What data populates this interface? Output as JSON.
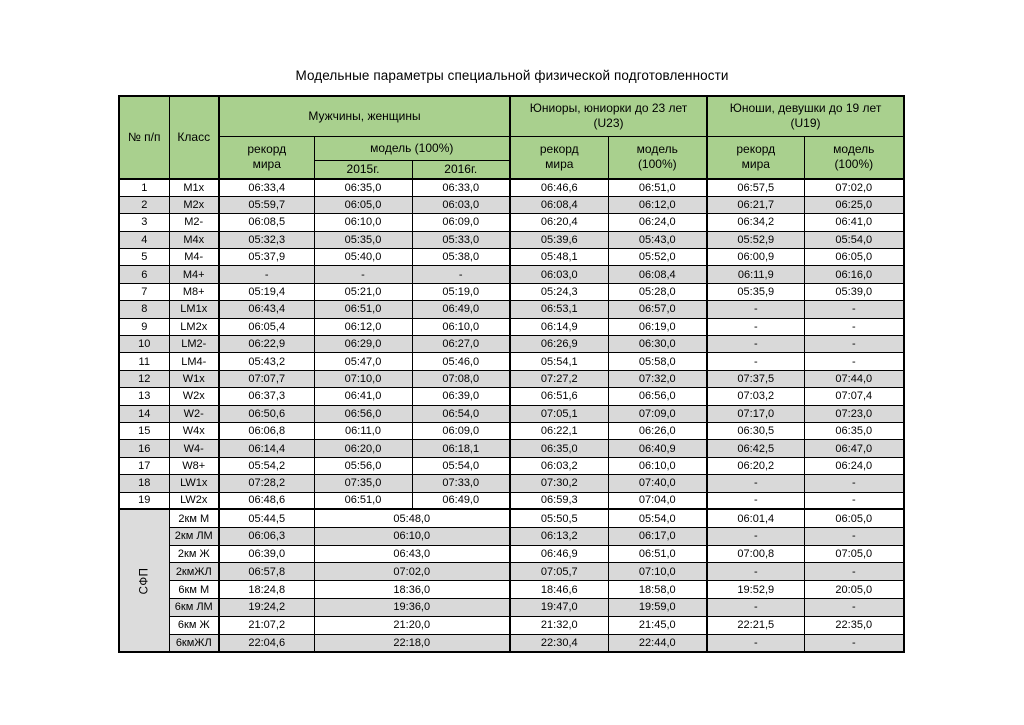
{
  "title": "Модельные параметры специальной физической подготовленности",
  "colors": {
    "header_green": "#a9d08e",
    "stripe_gray": "#d9d9d9",
    "sfp_cell_gray": "#dcdcdc",
    "border": "#000000"
  },
  "header": {
    "num": "№ п/п",
    "klass": "Класс",
    "group_men": "Мужчины, женщины",
    "group_u23": "Юниоры, юниорки до 23 лет\n(U23)",
    "group_u19": "Юноши, девушки до 19 лет\n(U19)",
    "record_world": "рекорд\nмира",
    "model_100": "модель (100%)",
    "model_100_2line": "модель\n(100%)",
    "year_2015": "2015г.",
    "year_2016": "2016г."
  },
  "rows": [
    {
      "num": "1",
      "cls": "M1x",
      "values": [
        "06:33,4",
        "06:35,0",
        "06:33,0",
        "06:46,6",
        "06:51,0",
        "06:57,5",
        "07:02,0"
      ]
    },
    {
      "num": "2",
      "cls": "M2x",
      "values": [
        "05:59,7",
        "06:05,0",
        "06:03,0",
        "06:08,4",
        "06:12,0",
        "06:21,7",
        "06:25,0"
      ]
    },
    {
      "num": "3",
      "cls": "M2-",
      "values": [
        "06:08,5",
        "06:10,0",
        "06:09,0",
        "06:20,4",
        "06:24,0",
        "06:34,2",
        "06:41,0"
      ]
    },
    {
      "num": "4",
      "cls": "M4x",
      "values": [
        "05:32,3",
        "05:35,0",
        "05:33,0",
        "05:39,6",
        "05:43,0",
        "05:52,9",
        "05:54,0"
      ]
    },
    {
      "num": "5",
      "cls": "M4-",
      "values": [
        "05:37,9",
        "05:40,0",
        "05:38,0",
        "05:48,1",
        "05:52,0",
        "06:00,9",
        "06:05,0"
      ]
    },
    {
      "num": "6",
      "cls": "M4+",
      "values": [
        "-",
        "-",
        "-",
        "06:03,0",
        "06:08,4",
        "06:11,9",
        "06:16,0"
      ]
    },
    {
      "num": "7",
      "cls": "M8+",
      "values": [
        "05:19,4",
        "05:21,0",
        "05:19,0",
        "05:24,3",
        "05:28,0",
        "05:35,9",
        "05:39,0"
      ]
    },
    {
      "num": "8",
      "cls": "LM1x",
      "values": [
        "06:43,4",
        "06:51,0",
        "06:49,0",
        "06:53,1",
        "06:57,0",
        "-",
        "-"
      ]
    },
    {
      "num": "9",
      "cls": "LM2x",
      "values": [
        "06:05,4",
        "06:12,0",
        "06:10,0",
        "06:14,9",
        "06:19,0",
        "-",
        "-"
      ]
    },
    {
      "num": "10",
      "cls": "LM2-",
      "values": [
        "06:22,9",
        "06:29,0",
        "06:27,0",
        "06:26,9",
        "06:30,0",
        "-",
        "-"
      ]
    },
    {
      "num": "11",
      "cls": "LM4-",
      "values": [
        "05:43,2",
        "05:47,0",
        "05:46,0",
        "05:54,1",
        "05:58,0",
        "-",
        "-"
      ]
    },
    {
      "num": "12",
      "cls": "W1x",
      "values": [
        "07:07,7",
        "07:10,0",
        "07:08,0",
        "07:27,2",
        "07:32,0",
        "07:37,5",
        "07:44,0"
      ]
    },
    {
      "num": "13",
      "cls": "W2x",
      "values": [
        "06:37,3",
        "06:41,0",
        "06:39,0",
        "06:51,6",
        "06:56,0",
        "07:03,2",
        "07:07,4"
      ]
    },
    {
      "num": "14",
      "cls": "W2-",
      "values": [
        "06:50,6",
        "06:56,0",
        "06:54,0",
        "07:05,1",
        "07:09,0",
        "07:17,0",
        "07:23,0"
      ]
    },
    {
      "num": "15",
      "cls": "W4x",
      "values": [
        "06:06,8",
        "06:11,0",
        "06:09,0",
        "06:22,1",
        "06:26,0",
        "06:30,5",
        "06:35,0"
      ]
    },
    {
      "num": "16",
      "cls": "W4-",
      "values": [
        "06:14,4",
        "06:20,0",
        "06:18,1",
        "06:35,0",
        "06:40,9",
        "06:42,5",
        "06:47,0"
      ]
    },
    {
      "num": "17",
      "cls": "W8+",
      "values": [
        "05:54,2",
        "05:56,0",
        "05:54,0",
        "06:03,2",
        "06:10,0",
        "06:20,2",
        "06:24,0"
      ]
    },
    {
      "num": "18",
      "cls": "LW1x",
      "values": [
        "07:28,2",
        "07:35,0",
        "07:33,0",
        "07:30,2",
        "07:40,0",
        "-",
        "-"
      ]
    },
    {
      "num": "19",
      "cls": "LW2x",
      "values": [
        "06:48,6",
        "06:51,0",
        "06:49,0",
        "06:59,3",
        "07:04,0",
        "-",
        "-"
      ]
    }
  ],
  "sfp": {
    "label": "СФП",
    "rows": [
      {
        "cls": "2км М",
        "values": [
          "05:44,5",
          "05:48,0",
          "05:50,5",
          "05:54,0",
          "06:01,4",
          "06:05,0"
        ]
      },
      {
        "cls": "2км ЛМ",
        "values": [
          "06:06,3",
          "06:10,0",
          "06:13,2",
          "06:17,0",
          "-",
          "-"
        ]
      },
      {
        "cls": "2км Ж",
        "values": [
          "06:39,0",
          "06:43,0",
          "06:46,9",
          "06:51,0",
          "07:00,8",
          "07:05,0"
        ]
      },
      {
        "cls": "2кмЖЛ",
        "values": [
          "06:57,8",
          "07:02,0",
          "07:05,7",
          "07:10,0",
          "-",
          "-"
        ]
      },
      {
        "cls": "6км М",
        "values": [
          "18:24,8",
          "18:36,0",
          "18:46,6",
          "18:58,0",
          "19:52,9",
          "20:05,0"
        ]
      },
      {
        "cls": "6км ЛМ",
        "values": [
          "19:24,2",
          "19:36,0",
          "19:47,0",
          "19:59,0",
          "-",
          "-"
        ]
      },
      {
        "cls": "6км Ж",
        "values": [
          "21:07,2",
          "21:20,0",
          "21:32,0",
          "21:45,0",
          "22:21,5",
          "22:35,0"
        ]
      },
      {
        "cls": "6кмЖЛ",
        "values": [
          "22:04,6",
          "22:18,0",
          "22:30,4",
          "22:44,0",
          "-",
          "-"
        ]
      }
    ]
  }
}
